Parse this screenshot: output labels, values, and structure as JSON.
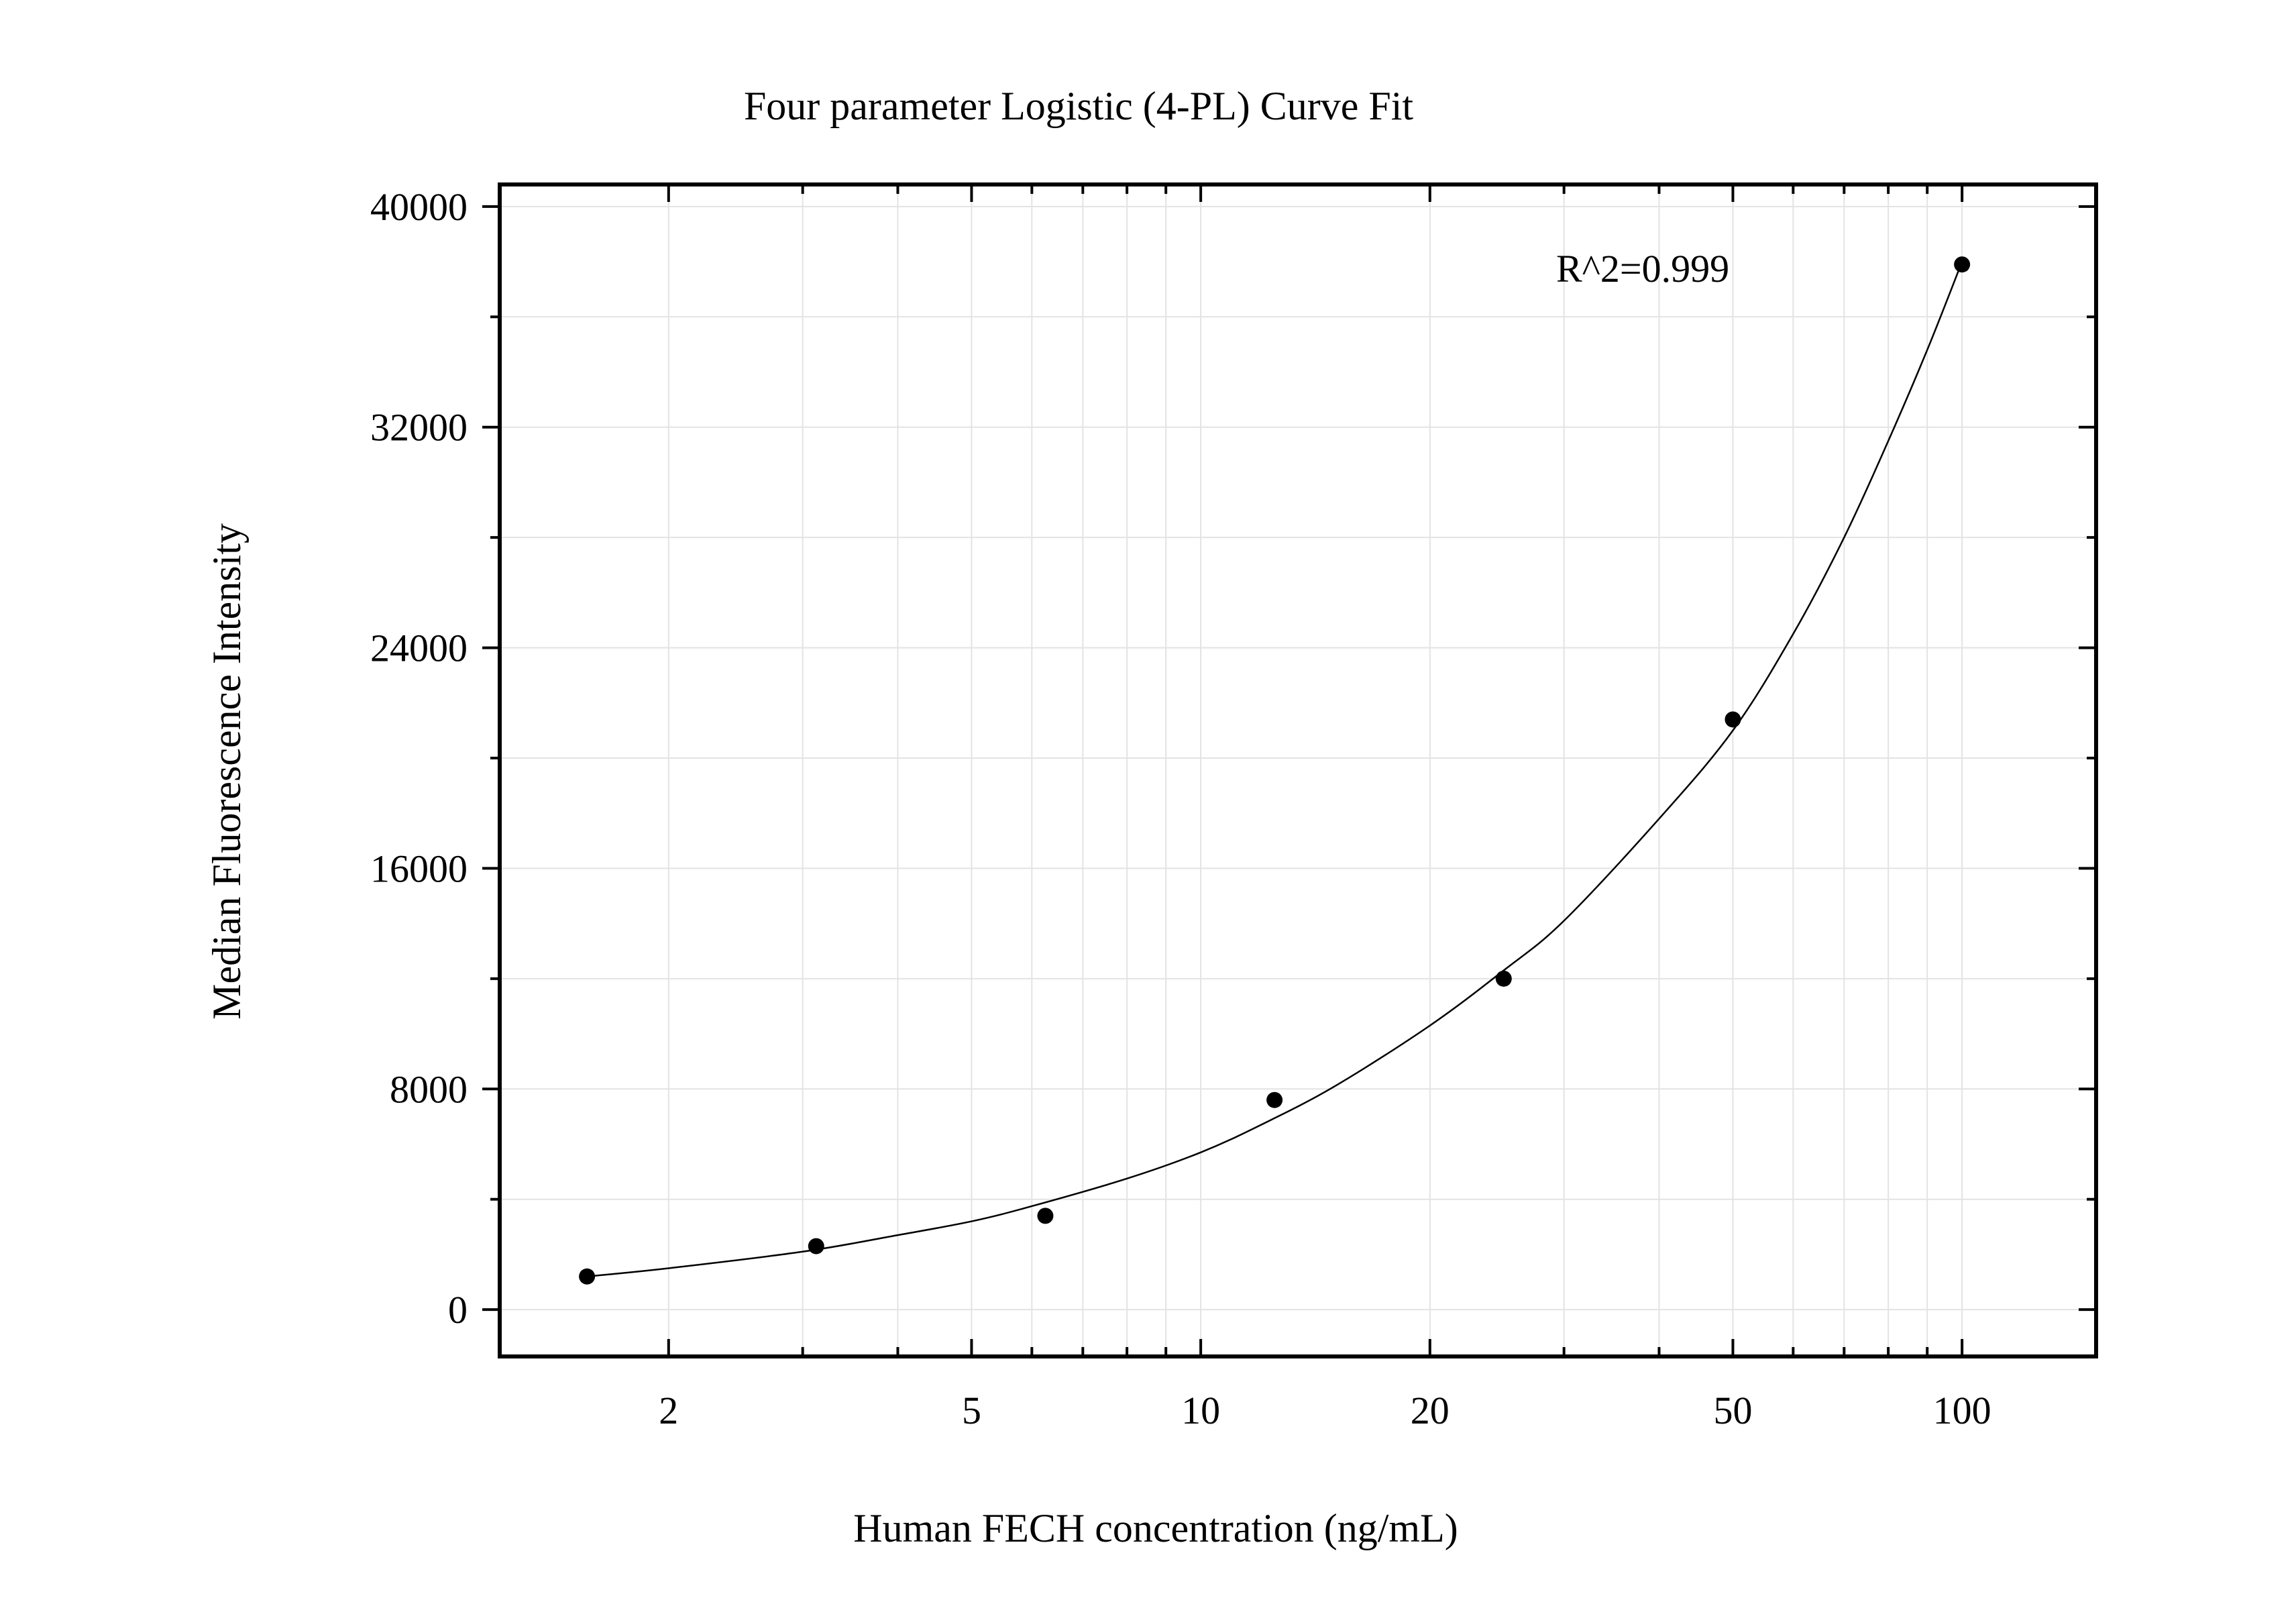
{
  "chart_data": {
    "type": "scatter",
    "title": "Four parameter Logistic (4-PL) Curve Fit",
    "xlabel": "Human FECH concentration (ng/mL)",
    "ylabel": "Median Fluorescence Intensity",
    "x_scale": "log",
    "xlim": [
      1.2,
      150
    ],
    "ylim": [
      -1700,
      40800
    ],
    "x_ticks": [
      2,
      5,
      10,
      20,
      50,
      100
    ],
    "x_tick_labels": [
      "2",
      "5",
      "10",
      "20",
      "50",
      "100"
    ],
    "y_ticks": [
      0,
      8000,
      16000,
      24000,
      32000,
      40000
    ],
    "y_tick_labels": [
      "0",
      "8000",
      "16000",
      "24000",
      "32000",
      "40000"
    ],
    "grid": true,
    "annotation": "R^2=0.999",
    "points": {
      "x": [
        1.5625,
        3.125,
        6.25,
        12.5,
        25,
        50,
        100
      ],
      "y": [
        1200,
        2300,
        3400,
        7600,
        12000,
        21400,
        37900
      ]
    },
    "fit_curve": {
      "x": [
        1.5625,
        2,
        3,
        4,
        5,
        6,
        8,
        10,
        12,
        15,
        20,
        25,
        30,
        40,
        50,
        60,
        70,
        80,
        90,
        100
      ],
      "y": [
        1200,
        1500,
        2100,
        2700,
        3200,
        3750,
        4750,
        5700,
        6700,
        8100,
        10300,
        12300,
        14100,
        17800,
        21000,
        24500,
        28000,
        31500,
        34800,
        38000
      ]
    }
  }
}
